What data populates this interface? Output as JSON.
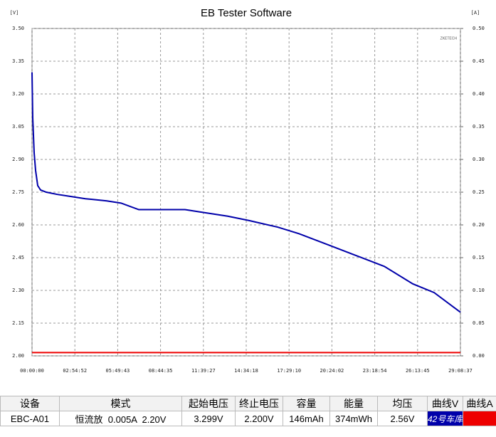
{
  "chart_data": {
    "type": "line",
    "title": "EB Tester Software",
    "ylabel": "[V]",
    "y2label": "[A]",
    "watermark": "ZKETECH",
    "xlim": [
      0,
      104917
    ],
    "xticks": [
      {
        "value": 0,
        "label": "00:00:00"
      },
      {
        "value": 10492,
        "label": "02:54:52"
      },
      {
        "value": 20983,
        "label": "05:49:43"
      },
      {
        "value": 31475,
        "label": "08:44:35"
      },
      {
        "value": 41967,
        "label": "11:39:27"
      },
      {
        "value": 52458,
        "label": "14:34:18"
      },
      {
        "value": 62950,
        "label": "17:29:10"
      },
      {
        "value": 73442,
        "label": "20:24:02"
      },
      {
        "value": 83934,
        "label": "23:18:54"
      },
      {
        "value": 94425,
        "label": "26:13:45"
      },
      {
        "value": 104917,
        "label": "29:08:37"
      }
    ],
    "ylim": [
      2.0,
      3.5
    ],
    "yticks": [
      {
        "value": 2.0,
        "label": "2.00"
      },
      2.15,
      {
        "value": 2.3,
        "label": "2.30"
      },
      2.45,
      {
        "value": 2.6,
        "label": "2.60"
      },
      2.75,
      {
        "value": 2.9,
        "label": "2.90"
      },
      3.05,
      {
        "value": 3.2,
        "label": "3.20"
      },
      3.35,
      {
        "value": 3.5,
        "label": "3.50"
      }
    ],
    "y2lim": [
      0,
      0.5
    ],
    "y2ticks": [
      {
        "value": 0,
        "label": "0.00"
      },
      0.05,
      {
        "value": 0.1,
        "label": "0.10"
      },
      0.15,
      {
        "value": 0.2,
        "label": "0.20"
      },
      0.25,
      {
        "value": 0.3,
        "label": "0.30"
      },
      0.35,
      {
        "value": 0.4,
        "label": "0.40"
      },
      0.45,
      {
        "value": 0.5,
        "label": "0.50"
      }
    ],
    "grid": true,
    "series": [
      {
        "name": "V",
        "color": "#0000aa",
        "x": [
          0,
          174,
          523,
          872,
          1394,
          2092,
          3486,
          6101,
          9587,
          13073,
          18302,
          21788,
          26145,
          37475,
          40961,
          47933,
          53162,
          60134,
          65363,
          72335,
          79307,
          86279,
          93251,
          98480,
          104917
        ],
        "values": [
          3.299,
          3.09,
          2.93,
          2.85,
          2.78,
          2.76,
          2.75,
          2.74,
          2.73,
          2.72,
          2.71,
          2.7,
          2.67,
          2.67,
          2.66,
          2.64,
          2.62,
          2.59,
          2.56,
          2.51,
          2.46,
          2.41,
          2.33,
          2.29,
          2.2
        ]
      },
      {
        "name": "A",
        "color": "#ee0000",
        "axis": "y2",
        "x": [
          0,
          104917
        ],
        "values": [
          0.005,
          0.005
        ]
      }
    ]
  },
  "table": {
    "headers": [
      "设备",
      "模式",
      "起始电压",
      "终止电压",
      "容量",
      "能量",
      "均压",
      "曲线V",
      "曲线A"
    ],
    "rows": [
      [
        "EBC-A01",
        "恒流放  0.005A  2.20V",
        "3.299V",
        "2.200V",
        "146mAh",
        "374mWh",
        "2.56V"
      ]
    ],
    "badge": "42号车库"
  }
}
